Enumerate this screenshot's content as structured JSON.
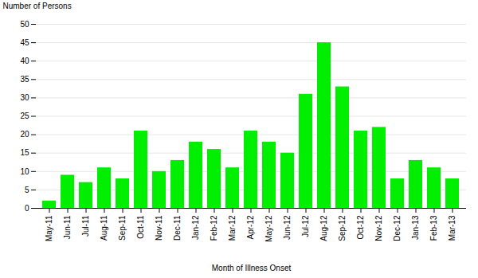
{
  "chart_data": {
    "type": "bar",
    "categories": [
      "May-11",
      "Jun-11",
      "Jul-11",
      "Aug-11",
      "Sep-11",
      "Oct-11",
      "Nov-11",
      "Dec-11",
      "Jan-12",
      "Feb-12",
      "Mar-12",
      "Apr-12",
      "May-12",
      "Jun-12",
      "Jul-12",
      "Aug-12",
      "Sep-12",
      "Oct-12",
      "Nov-12",
      "Dec-12",
      "Jan-13",
      "Feb-13",
      "Mar-13"
    ],
    "values": [
      2,
      9,
      7,
      11,
      8,
      21,
      10,
      13,
      18,
      16,
      11,
      21,
      18,
      15,
      31,
      45,
      33,
      21,
      22,
      8,
      13,
      11,
      8
    ],
    "color": "#00EE00",
    "xlabel": "Month of Illness Onset",
    "ylabel": "Number of Persons",
    "ylim": [
      0,
      50
    ],
    "yticks": [
      0,
      5,
      10,
      15,
      20,
      25,
      30,
      35,
      40,
      45,
      50
    ],
    "grid": true
  }
}
